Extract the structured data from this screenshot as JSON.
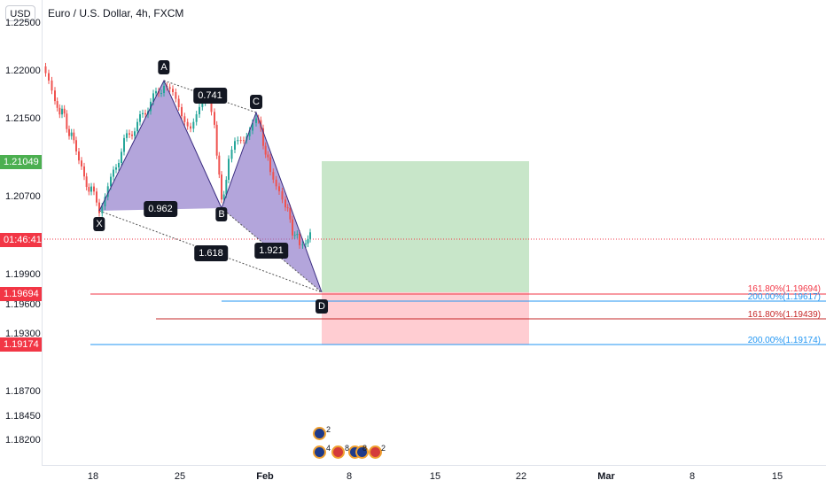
{
  "header": {
    "currency": "USD",
    "title": "Euro / U.S. Dollar, 4h, FXCM"
  },
  "price_axis": {
    "labels": [
      "1.22500",
      "1.22000",
      "1.21500",
      "1.20700",
      "1.19900",
      "1.19600",
      "1.19300",
      "1.18700",
      "1.18450",
      "1.18200"
    ],
    "tags": {
      "target": "1.21049",
      "countdown": "01:46:41",
      "stop_1": "1.19694",
      "stop_2": "1.19174"
    },
    "colors": {
      "green": "#4caf50",
      "red": "#f23645",
      "black": "#131722"
    }
  },
  "time_axis": {
    "labels": [
      "18",
      "25",
      "Feb",
      "8",
      "15",
      "22",
      "Mar",
      "8",
      "15"
    ]
  },
  "pattern": {
    "points": [
      "X",
      "A",
      "B",
      "C",
      "D"
    ],
    "ratios": {
      "xab": "0.962",
      "abc": "0.741",
      "bcd": "1.921",
      "xad": "1.618"
    },
    "fill_color": "#8a74c8"
  },
  "fib_levels": [
    {
      "label": "161.80%(1.19694)",
      "color": "#f23645"
    },
    {
      "label": "200.00%(1.19617)",
      "color": "#2196f3"
    },
    {
      "label": "161.80%(1.19439)",
      "color": "#c62828"
    },
    {
      "label": "200.00%(1.19174)",
      "color": "#2196f3"
    }
  ],
  "events": {
    "counts": [
      "2",
      "4",
      "8",
      "8",
      "2"
    ],
    "icons": [
      "euro-flag-icon",
      "euro-flag-icon",
      "us-flag-icon",
      "euro-flag-icon",
      "euro-flag-icon",
      "us-flag-icon"
    ]
  },
  "position": {
    "profit_color": "#c8e6c9",
    "loss_color": "#ffcdd2"
  }
}
